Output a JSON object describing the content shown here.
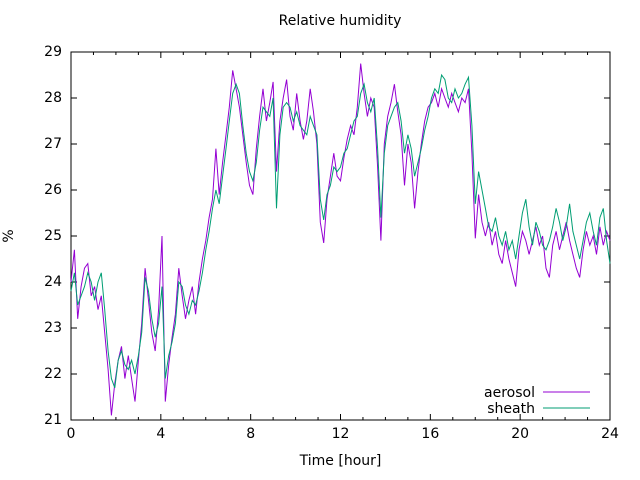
{
  "page": {
    "background": "#ffffff",
    "text_color": "#000000"
  },
  "chart_data": {
    "type": "line",
    "title": "Relative humidity",
    "xlabel": "Time [hour]",
    "ylabel": "%",
    "xlim": [
      0,
      24
    ],
    "ylim": [
      21,
      29
    ],
    "x_major_ticks": [
      0,
      4,
      8,
      12,
      16,
      20,
      24
    ],
    "x_minor_tick_step": 1,
    "y_major_ticks": [
      21,
      22,
      23,
      24,
      25,
      26,
      27,
      28,
      29
    ],
    "grid": "off",
    "tick_style": "inward-mirrored",
    "legend_position": "bottom-right-inside",
    "x_start": 0,
    "x_step": 0.15,
    "series": [
      {
        "name": "aerosol",
        "color": "#9400d3",
        "values": [
          24.0,
          24.7,
          23.2,
          23.9,
          24.3,
          24.4,
          23.7,
          23.9,
          23.4,
          23.7,
          22.9,
          22.1,
          21.1,
          21.8,
          22.3,
          22.6,
          21.9,
          22.4,
          21.9,
          21.4,
          22.3,
          23.1,
          24.3,
          23.6,
          22.9,
          22.5,
          23.4,
          25.0,
          21.4,
          22.2,
          22.8,
          23.3,
          24.3,
          23.7,
          23.2,
          23.6,
          23.9,
          23.3,
          24.0,
          24.5,
          24.9,
          25.4,
          25.8,
          26.9,
          25.9,
          26.6,
          27.2,
          27.8,
          28.6,
          28.2,
          27.8,
          27.2,
          26.6,
          26.1,
          25.9,
          26.9,
          27.6,
          28.2,
          27.5,
          27.9,
          28.35,
          26.4,
          27.5,
          28.0,
          28.4,
          27.6,
          27.3,
          28.1,
          27.5,
          27.1,
          27.5,
          28.2,
          27.7,
          27.0,
          25.3,
          24.85,
          25.8,
          26.3,
          26.8,
          26.3,
          26.2,
          26.7,
          27.1,
          27.4,
          27.2,
          27.8,
          28.75,
          28.1,
          27.6,
          28.0,
          27.8,
          26.5,
          24.9,
          27.0,
          27.6,
          27.9,
          28.3,
          27.7,
          27.2,
          26.1,
          27.0,
          26.6,
          25.6,
          26.4,
          27.0,
          27.5,
          27.8,
          27.9,
          28.1,
          27.8,
          28.2,
          28.0,
          27.8,
          28.1,
          27.9,
          27.7,
          28.0,
          27.9,
          28.2,
          26.8,
          24.95,
          25.9,
          25.3,
          25.0,
          25.3,
          24.8,
          25.1,
          24.6,
          24.4,
          24.9,
          24.5,
          24.2,
          23.9,
          24.7,
          25.1,
          24.9,
          24.6,
          24.9,
          25.2,
          24.8,
          25.0,
          24.3,
          24.1,
          24.8,
          25.1,
          24.7,
          25.0,
          25.3,
          24.9,
          24.6,
          24.3,
          24.1,
          24.7,
          25.1,
          24.8,
          25.0,
          24.6,
          25.2,
          24.8,
          25.1,
          24.9
        ]
      },
      {
        "name": "sheath",
        "color": "#009e73",
        "values": [
          23.8,
          24.2,
          23.5,
          23.7,
          23.9,
          24.2,
          24.0,
          23.6,
          24.0,
          24.2,
          23.4,
          22.5,
          21.9,
          21.7,
          22.3,
          22.5,
          22.2,
          22.1,
          22.3,
          22.0,
          22.4,
          22.9,
          24.1,
          23.8,
          23.2,
          22.8,
          23.1,
          23.9,
          21.9,
          22.4,
          22.7,
          23.1,
          24.0,
          23.9,
          23.5,
          23.3,
          23.6,
          23.5,
          23.8,
          24.2,
          24.7,
          25.1,
          25.6,
          26.0,
          25.7,
          26.3,
          26.9,
          27.5,
          28.1,
          28.3,
          28.1,
          27.4,
          26.8,
          26.4,
          26.2,
          26.6,
          27.3,
          27.8,
          27.7,
          27.6,
          28.0,
          25.6,
          27.2,
          27.8,
          27.9,
          27.8,
          27.5,
          27.7,
          27.4,
          27.3,
          27.2,
          27.6,
          27.4,
          27.2,
          25.8,
          25.35,
          25.9,
          26.1,
          26.5,
          26.4,
          26.5,
          26.8,
          26.9,
          27.2,
          27.5,
          27.6,
          28.1,
          28.3,
          27.9,
          27.7,
          28.0,
          26.9,
          25.4,
          26.8,
          27.4,
          27.6,
          27.8,
          27.9,
          27.5,
          26.8,
          27.2,
          26.9,
          26.3,
          26.6,
          26.9,
          27.3,
          27.6,
          28.0,
          28.2,
          28.1,
          28.5,
          28.4,
          28.0,
          27.9,
          28.2,
          28.0,
          28.1,
          28.3,
          28.45,
          27.4,
          25.7,
          26.4,
          26.0,
          25.6,
          25.2,
          25.1,
          25.4,
          25.0,
          24.8,
          25.1,
          24.7,
          24.9,
          24.5,
          25.0,
          25.5,
          25.8,
          25.2,
          24.8,
          25.3,
          25.1,
          24.8,
          24.7,
          24.9,
          25.2,
          25.6,
          25.3,
          24.9,
          25.2,
          25.7,
          25.1,
          24.8,
          24.5,
          24.9,
          25.3,
          25.5,
          25.1,
          24.8,
          25.4,
          25.6,
          24.9,
          24.4
        ]
      }
    ]
  }
}
